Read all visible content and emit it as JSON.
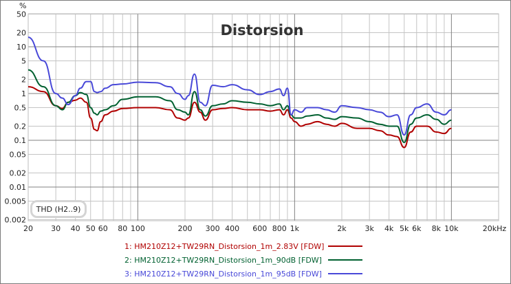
{
  "chart_data": {
    "type": "line",
    "title": "Distorsion",
    "xlabel": "Hz",
    "ylabel": "%",
    "xscale": "log",
    "yscale": "log",
    "xlim": [
      20,
      20000
    ],
    "ylim": [
      0.002,
      50
    ],
    "grid": true,
    "legend_position": "bottom",
    "annotation": "THD (H2..9)",
    "x_tick_labels": [
      "20",
      "30",
      "40",
      "50",
      "60",
      "80",
      "100",
      "200",
      "300",
      "400",
      "600",
      "800",
      "1k",
      "2k",
      "3k",
      "4k",
      "5k",
      "6k",
      "8k",
      "10k",
      "20kHz"
    ],
    "x_ticks": [
      20,
      30,
      40,
      50,
      60,
      80,
      100,
      200,
      300,
      400,
      600,
      800,
      1000,
      2000,
      3000,
      4000,
      5000,
      6000,
      8000,
      10000,
      20000
    ],
    "y_tick_labels": [
      "50",
      "20",
      "10",
      "5",
      "2",
      "1",
      "0.5",
      "0.2",
      "0.1",
      "0.05",
      "0.02",
      "0.01",
      "0.005",
      "0.002"
    ],
    "y_ticks": [
      50,
      20,
      10,
      5,
      2,
      1,
      0.5,
      0.2,
      0.1,
      0.05,
      0.02,
      0.01,
      0.005,
      0.002
    ],
    "x": [
      20,
      25,
      30,
      33,
      36,
      40,
      43,
      47,
      50,
      53,
      55,
      58,
      62,
      70,
      80,
      100,
      130,
      160,
      180,
      200,
      210,
      230,
      250,
      270,
      300,
      350,
      400,
      500,
      600,
      700,
      800,
      850,
      900,
      950,
      1000,
      1100,
      1200,
      1400,
      1600,
      1800,
      2000,
      2500,
      3000,
      3500,
      4000,
      4500,
      5000,
      5500,
      6000,
      7000,
      8000,
      9000,
      10000
    ],
    "series": [
      {
        "name": "1: HM210Z12+TW29RN_Distorsion_1m_2.83V [FDW]",
        "color": "#b00000",
        "values": [
          1.4,
          1.1,
          0.55,
          0.48,
          0.65,
          0.72,
          0.8,
          0.65,
          0.3,
          0.17,
          0.16,
          0.25,
          0.35,
          0.42,
          0.48,
          0.5,
          0.5,
          0.45,
          0.3,
          0.27,
          0.3,
          0.65,
          0.4,
          0.27,
          0.45,
          0.48,
          0.5,
          0.45,
          0.45,
          0.42,
          0.45,
          0.35,
          0.45,
          0.3,
          0.25,
          0.2,
          0.22,
          0.25,
          0.22,
          0.2,
          0.23,
          0.18,
          0.18,
          0.16,
          0.13,
          0.12,
          0.07,
          0.15,
          0.2,
          0.2,
          0.15,
          0.14,
          0.18
        ]
      },
      {
        "name": "2: HM210Z12+TW29RN_Distorsion_1m_90dB [FDW]",
        "color": "#006030",
        "values": [
          3.2,
          1.4,
          0.55,
          0.45,
          0.65,
          0.9,
          1.05,
          0.95,
          0.5,
          0.38,
          0.35,
          0.42,
          0.45,
          0.55,
          0.75,
          0.85,
          0.85,
          0.7,
          0.45,
          0.4,
          0.35,
          1.1,
          0.45,
          0.33,
          0.55,
          0.6,
          0.7,
          0.65,
          0.6,
          0.55,
          0.6,
          0.45,
          0.55,
          0.35,
          0.3,
          0.3,
          0.33,
          0.35,
          0.3,
          0.28,
          0.32,
          0.3,
          0.25,
          0.22,
          0.2,
          0.2,
          0.09,
          0.22,
          0.3,
          0.35,
          0.28,
          0.22,
          0.27
        ]
      },
      {
        "name": "3: HM210Z12+TW29RN_Distorsion_1m_95dB [FDW]",
        "color": "#4848d8",
        "values": [
          16,
          5,
          1.0,
          0.8,
          0.58,
          0.9,
          1.3,
          1.8,
          1.8,
          1.1,
          1.05,
          1.1,
          1.3,
          1.55,
          1.6,
          1.75,
          1.7,
          1.4,
          1.0,
          0.75,
          0.9,
          2.6,
          0.65,
          0.55,
          1.5,
          1.4,
          1.55,
          1.2,
          0.95,
          1.1,
          1.25,
          0.9,
          1.3,
          0.35,
          0.45,
          0.4,
          0.5,
          0.5,
          0.45,
          0.4,
          0.55,
          0.5,
          0.45,
          0.4,
          0.32,
          0.35,
          0.13,
          0.35,
          0.5,
          0.6,
          0.4,
          0.35,
          0.45
        ]
      }
    ]
  },
  "legend": {
    "items": [
      {
        "label": "1: HM210Z12+TW29RN_Distorsion_1m_2.83V [FDW]",
        "color": "#b00000"
      },
      {
        "label": "2: HM210Z12+TW29RN_Distorsion_1m_90dB [FDW]",
        "color": "#006030"
      },
      {
        "label": "3: HM210Z12+TW29RN_Distorsion_1m_95dB [FDW]",
        "color": "#4848d8"
      }
    ]
  },
  "annotation_box": "THD (H2..9)",
  "y_unit": "%"
}
